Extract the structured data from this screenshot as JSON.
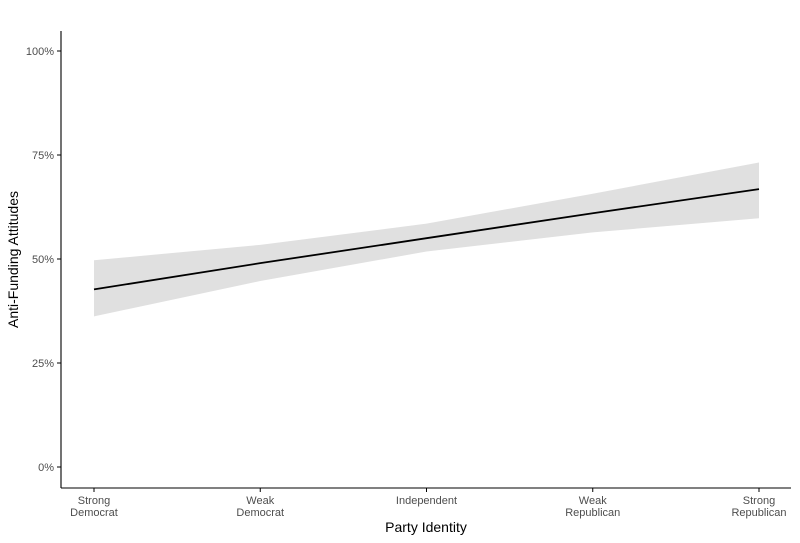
{
  "chart_data": {
    "type": "line",
    "xlabel": "Party Identity",
    "ylabel": "Anti-Funding Attitudes",
    "categories": [
      [
        "Strong",
        "Democrat"
      ],
      [
        "Weak",
        "Democrat"
      ],
      [
        "Independent"
      ],
      [
        "Weak",
        "Republican"
      ],
      [
        "Strong",
        "Republican"
      ]
    ],
    "y_ticks": [
      0,
      0.25,
      0.5,
      0.75,
      1.0
    ],
    "y_tick_labels": [
      "0%",
      "25%",
      "50%",
      "75%",
      "100%"
    ],
    "ylim": [
      -0.05,
      1.05
    ],
    "series": [
      {
        "values": [
          0.427,
          0.49,
          0.55,
          0.61,
          0.668
        ],
        "ci_lower": [
          0.362,
          0.447,
          0.518,
          0.564,
          0.598
        ],
        "ci_upper": [
          0.497,
          0.534,
          0.585,
          0.657,
          0.732
        ]
      }
    ],
    "grid": false,
    "legend": "none"
  },
  "colors": {
    "line": "#000000",
    "ribbon": "#e0e0e0",
    "axis": "#000000",
    "tick_text": "#4d4d4d"
  }
}
